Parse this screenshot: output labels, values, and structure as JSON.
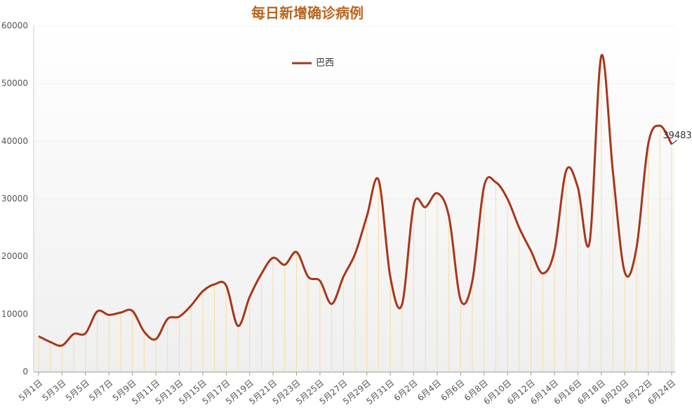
{
  "chart_data": {
    "type": "line",
    "title": "每日新增确诊病例",
    "categories": [
      "5月1日",
      null,
      "5月3日",
      null,
      "5月5日",
      null,
      "5月7日",
      null,
      "5月9日",
      null,
      "5月11日",
      null,
      "5月13日",
      null,
      "5月15日",
      null,
      "5月17日",
      null,
      "5月19日",
      null,
      "5月21日",
      null,
      "5月23日",
      null,
      "5月25日",
      null,
      "5月27日",
      null,
      "5月29日",
      null,
      "5月31日",
      null,
      "6月2日",
      null,
      "6月4日",
      null,
      "6月6日",
      null,
      "6月8日",
      null,
      "6月10日",
      null,
      "6月12日",
      null,
      "6月14日",
      null,
      "6月16日",
      null,
      "6月18日",
      null,
      "6月20日",
      null,
      "6月22日",
      null,
      "6月24日"
    ],
    "series": [
      {
        "name": "巴西",
        "color": "#a8361a",
        "values": [
          6200,
          5200,
          4600,
          6600,
          6700,
          10500,
          9900,
          10300,
          10600,
          7000,
          5700,
          9200,
          9600,
          11500,
          14000,
          15200,
          15000,
          8000,
          13000,
          17000,
          19800,
          18600,
          20800,
          16500,
          15800,
          11800,
          16500,
          20500,
          27000,
          33300,
          16500,
          11700,
          29000,
          28600,
          31000,
          27000,
          12500,
          15800,
          32200,
          32900,
          30000,
          25000,
          21000,
          17100,
          21000,
          34900,
          32000,
          22500,
          54800,
          34500,
          17300,
          21500,
          39500,
          42700,
          39483
        ],
        "value_labels": [
          null,
          null,
          null,
          null,
          null,
          null,
          null,
          null,
          null,
          null,
          null,
          null,
          null,
          null,
          null,
          null,
          null,
          null,
          null,
          null,
          null,
          null,
          null,
          null,
          null,
          null,
          null,
          null,
          null,
          null,
          null,
          null,
          null,
          null,
          null,
          null,
          null,
          null,
          null,
          null,
          null,
          null,
          null,
          null,
          null,
          null,
          null,
          null,
          null,
          null,
          null,
          null,
          null,
          null,
          "39483"
        ]
      }
    ],
    "ylim": [
      0,
      60000
    ],
    "yticks": [
      0,
      10000,
      20000,
      30000,
      40000,
      50000,
      60000
    ],
    "legend": "top"
  }
}
